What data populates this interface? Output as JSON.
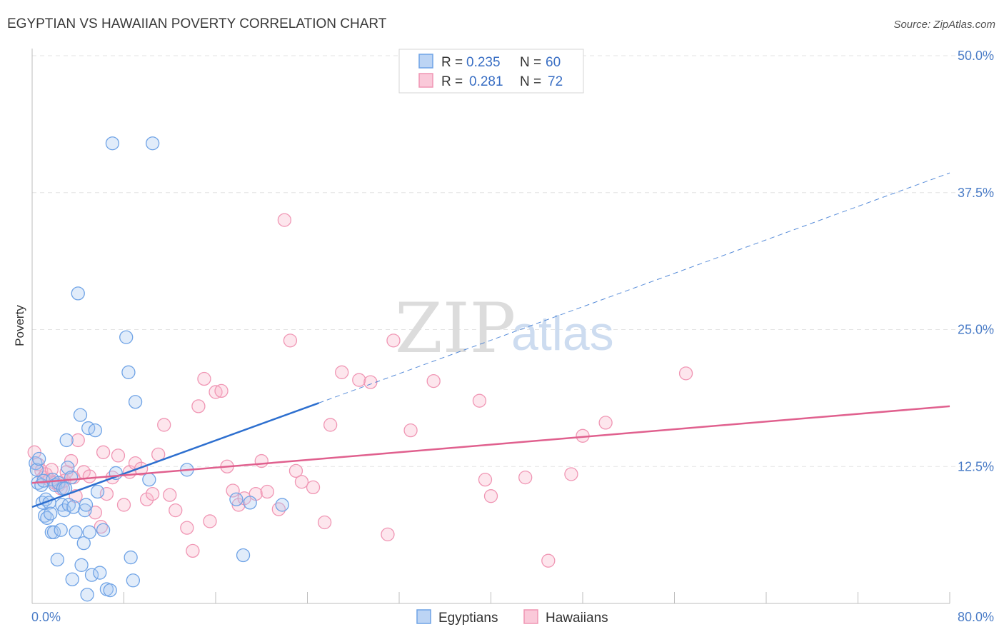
{
  "title": "EGYPTIAN VS HAWAIIAN POVERTY CORRELATION CHART",
  "source": "Source: ZipAtlas.com",
  "watermark": {
    "zip": "ZIP",
    "atlas": "atlas"
  },
  "colors": {
    "egyptians": "#6fa3e6",
    "egyptians_line": "#2d6fcf",
    "hawaiians": "#f096b4",
    "hawaiians_line": "#e0608e",
    "tick_text": "#4a7cc7",
    "grid": "#e3e3e3"
  },
  "legend": {
    "rows": [
      {
        "r_label": "R = ",
        "r_value": "0.235",
        "n_label": "N = ",
        "n_value": "60"
      },
      {
        "r_label": "R = ",
        "r_value": "0.281",
        "n_label": "N = ",
        "n_value": "72"
      }
    ]
  },
  "chart_data": {
    "type": "scatter",
    "title": "EGYPTIAN VS HAWAIIAN POVERTY CORRELATION CHART",
    "xlabel": "",
    "ylabel": "Poverty",
    "xlim": [
      0,
      80
    ],
    "ylim": [
      0,
      50
    ],
    "x_tick_labels": [
      "0.0%",
      "80.0%"
    ],
    "y_ticks": [
      12.5,
      25.0,
      37.5,
      50.0
    ],
    "y_tick_labels": [
      "12.5%",
      "25.0%",
      "37.5%",
      "50.0%"
    ],
    "grid": true,
    "legend_position": "top-center",
    "series": [
      {
        "name": "Egyptians",
        "x": [
          0.3,
          0.4,
          0.5,
          0.6,
          0.8,
          0.9,
          1.0,
          1.1,
          1.2,
          1.3,
          1.5,
          1.6,
          1.7,
          1.8,
          1.9,
          2.0,
          2.2,
          2.3,
          2.5,
          2.6,
          2.7,
          2.8,
          2.9,
          3.0,
          3.1,
          3.2,
          3.4,
          3.5,
          3.6,
          3.8,
          4.0,
          4.2,
          4.3,
          4.5,
          4.6,
          4.7,
          4.8,
          4.9,
          5.0,
          5.2,
          5.5,
          5.7,
          5.9,
          6.2,
          6.5,
          6.8,
          7.0,
          7.3,
          8.2,
          8.4,
          8.6,
          8.8,
          9.0,
          10.2,
          10.5,
          13.5,
          17.8,
          18.4,
          19.0,
          21.8
        ],
        "y": [
          12.8,
          12.2,
          11.0,
          13.2,
          10.8,
          9.2,
          11.2,
          8.0,
          9.5,
          7.8,
          9.2,
          8.2,
          6.5,
          11.3,
          6.5,
          10.8,
          4.0,
          11.0,
          6.7,
          9.0,
          10.5,
          8.5,
          10.5,
          14.9,
          12.4,
          9.0,
          11.5,
          2.2,
          8.8,
          6.5,
          28.3,
          17.2,
          3.5,
          5.5,
          8.5,
          9.0,
          0.8,
          16.0,
          6.5,
          2.6,
          15.8,
          10.2,
          2.8,
          6.7,
          1.3,
          1.2,
          42.0,
          11.9,
          24.3,
          21.1,
          4.2,
          2.1,
          18.4,
          11.3,
          42.0,
          12.2,
          9.5,
          4.4,
          9.2,
          9.0
        ],
        "trend": {
          "x0": 0,
          "y0": 8.8,
          "x1": 25,
          "y1": 18.3,
          "dashed_to_x": 80,
          "dashed_to_y": 39.3
        }
      },
      {
        "name": "Hawaiians",
        "x": [
          0.2,
          0.5,
          0.8,
          1.0,
          1.2,
          1.5,
          1.7,
          2.0,
          2.3,
          2.5,
          2.8,
          3.0,
          3.4,
          3.6,
          3.8,
          4.0,
          4.5,
          5.0,
          5.5,
          6.0,
          6.2,
          6.5,
          7.0,
          7.5,
          8.0,
          8.5,
          9.0,
          9.5,
          10.0,
          10.5,
          11.0,
          11.5,
          12.0,
          12.5,
          13.5,
          14.0,
          14.5,
          15.0,
          15.5,
          16.0,
          16.5,
          17.0,
          17.5,
          18.0,
          18.5,
          19.5,
          20.0,
          20.5,
          21.5,
          22.0,
          22.5,
          23.0,
          23.5,
          24.5,
          25.5,
          26.0,
          27.0,
          28.5,
          29.5,
          31.0,
          31.5,
          33.0,
          35.0,
          39.0,
          39.5,
          40.0,
          43.0,
          45.0,
          47.0,
          48.0,
          50.0,
          57.0
        ],
        "y": [
          13.8,
          12.7,
          12.1,
          11.5,
          11.8,
          11.3,
          12.2,
          11.0,
          10.8,
          10.5,
          11.2,
          12.0,
          13.0,
          11.5,
          9.8,
          14.9,
          12.0,
          11.6,
          8.3,
          7.0,
          13.8,
          10.0,
          11.5,
          13.5,
          9.0,
          12.0,
          12.8,
          12.3,
          9.5,
          10.0,
          13.6,
          16.3,
          9.9,
          8.5,
          6.9,
          4.8,
          18.0,
          20.5,
          7.5,
          19.3,
          19.4,
          12.5,
          10.3,
          9.0,
          9.6,
          10.0,
          13.0,
          10.2,
          8.6,
          35.0,
          24.0,
          12.1,
          11.1,
          10.6,
          7.4,
          16.3,
          21.1,
          20.4,
          20.2,
          6.3,
          24.0,
          15.8,
          20.3,
          18.5,
          11.3,
          9.8,
          11.5,
          3.9,
          11.8,
          15.3,
          16.5,
          21.0
        ],
        "trend": {
          "x0": 0,
          "y0": 11.0,
          "x1": 80,
          "y1": 18.0
        }
      }
    ]
  },
  "bottom_legend": [
    "Egyptians",
    "Hawaiians"
  ]
}
